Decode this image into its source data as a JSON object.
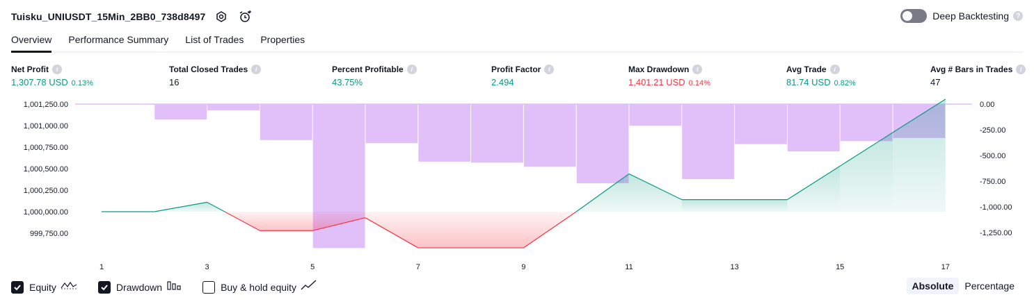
{
  "header": {
    "title": "Tuisku_UNIUSDT_15Min_2BB0_738d8497",
    "deep_backtesting_label": "Deep Backtesting",
    "deep_backtesting_enabled": false,
    "help_glyph": "?"
  },
  "tabs": [
    {
      "label": "Overview",
      "active": true
    },
    {
      "label": "Performance Summary",
      "active": false
    },
    {
      "label": "List of Trades",
      "active": false
    },
    {
      "label": "Properties",
      "active": false
    }
  ],
  "stats": {
    "net_profit": {
      "label": "Net Profit",
      "value": "1,307.78 USD",
      "pct": "0.13%"
    },
    "total_closed_trades": {
      "label": "Total Closed Trades",
      "value": "16"
    },
    "percent_profitable": {
      "label": "Percent Profitable",
      "value": "43.75%"
    },
    "profit_factor": {
      "label": "Profit Factor",
      "value": "2.494"
    },
    "max_drawdown": {
      "label": "Max Drawdown",
      "value": "1,401.21 USD",
      "pct": "0.14%"
    },
    "avg_trade": {
      "label": "Avg Trade",
      "value": "81.74 USD",
      "pct": "0.82%"
    },
    "avg_bars": {
      "label": "Avg # Bars in Trades",
      "value": "47"
    }
  },
  "chart_data": {
    "type": "line",
    "x": [
      1,
      2,
      3,
      4,
      5,
      6,
      7,
      8,
      9,
      10,
      11,
      12,
      13,
      14,
      15,
      16,
      17
    ],
    "series": [
      {
        "name": "Equity",
        "axis": "left",
        "color": "#089981",
        "values": [
          1000000.0,
          1000000.0,
          1000110.0,
          999780.0,
          999780.0,
          999930.0,
          999580.0,
          999580.0,
          999580.0,
          1000000.0,
          1000440.0,
          1000140.0,
          1000140.0,
          1000140.0,
          1000530.0,
          1000920.0,
          1001307.78
        ]
      },
      {
        "name": "Drawdown",
        "axis": "right",
        "type": "bar",
        "color": "#e1bff9",
        "values": [
          0,
          -150,
          -60,
          -350,
          -1401.21,
          -380,
          -560,
          -570,
          -610,
          -770,
          -210,
          -730,
          -390,
          -460,
          -360,
          -330,
          0
        ]
      }
    ],
    "x_ticks": [
      1,
      3,
      5,
      7,
      9,
      11,
      13,
      15,
      17
    ],
    "y_left_ticks": [
      "1,001,250.00",
      "1,001,000.00",
      "1,000,750.00",
      "1,000,500.00",
      "1,000,250.00",
      "1,000,000.00",
      "999,750.00"
    ],
    "y_left_range": [
      999700,
      1001250
    ],
    "y_right_ticks": [
      "0.00",
      "-250.00",
      "-500.00",
      "-750.00",
      "-1,000.00",
      "-1,250.00"
    ],
    "y_right_range": [
      -1420,
      0
    ],
    "profit_color": "#089981",
    "loss_color": "#f23645"
  },
  "legend": [
    {
      "label": "Equity",
      "checked": true,
      "icon": "equity-line-icon"
    },
    {
      "label": "Drawdown",
      "checked": true,
      "icon": "drawdown-bars-icon"
    },
    {
      "label": "Buy & hold equity",
      "checked": false,
      "icon": "buy-hold-line-icon"
    }
  ],
  "mode": {
    "absolute_label": "Absolute",
    "percentage_label": "Percentage",
    "selected": "Absolute"
  }
}
